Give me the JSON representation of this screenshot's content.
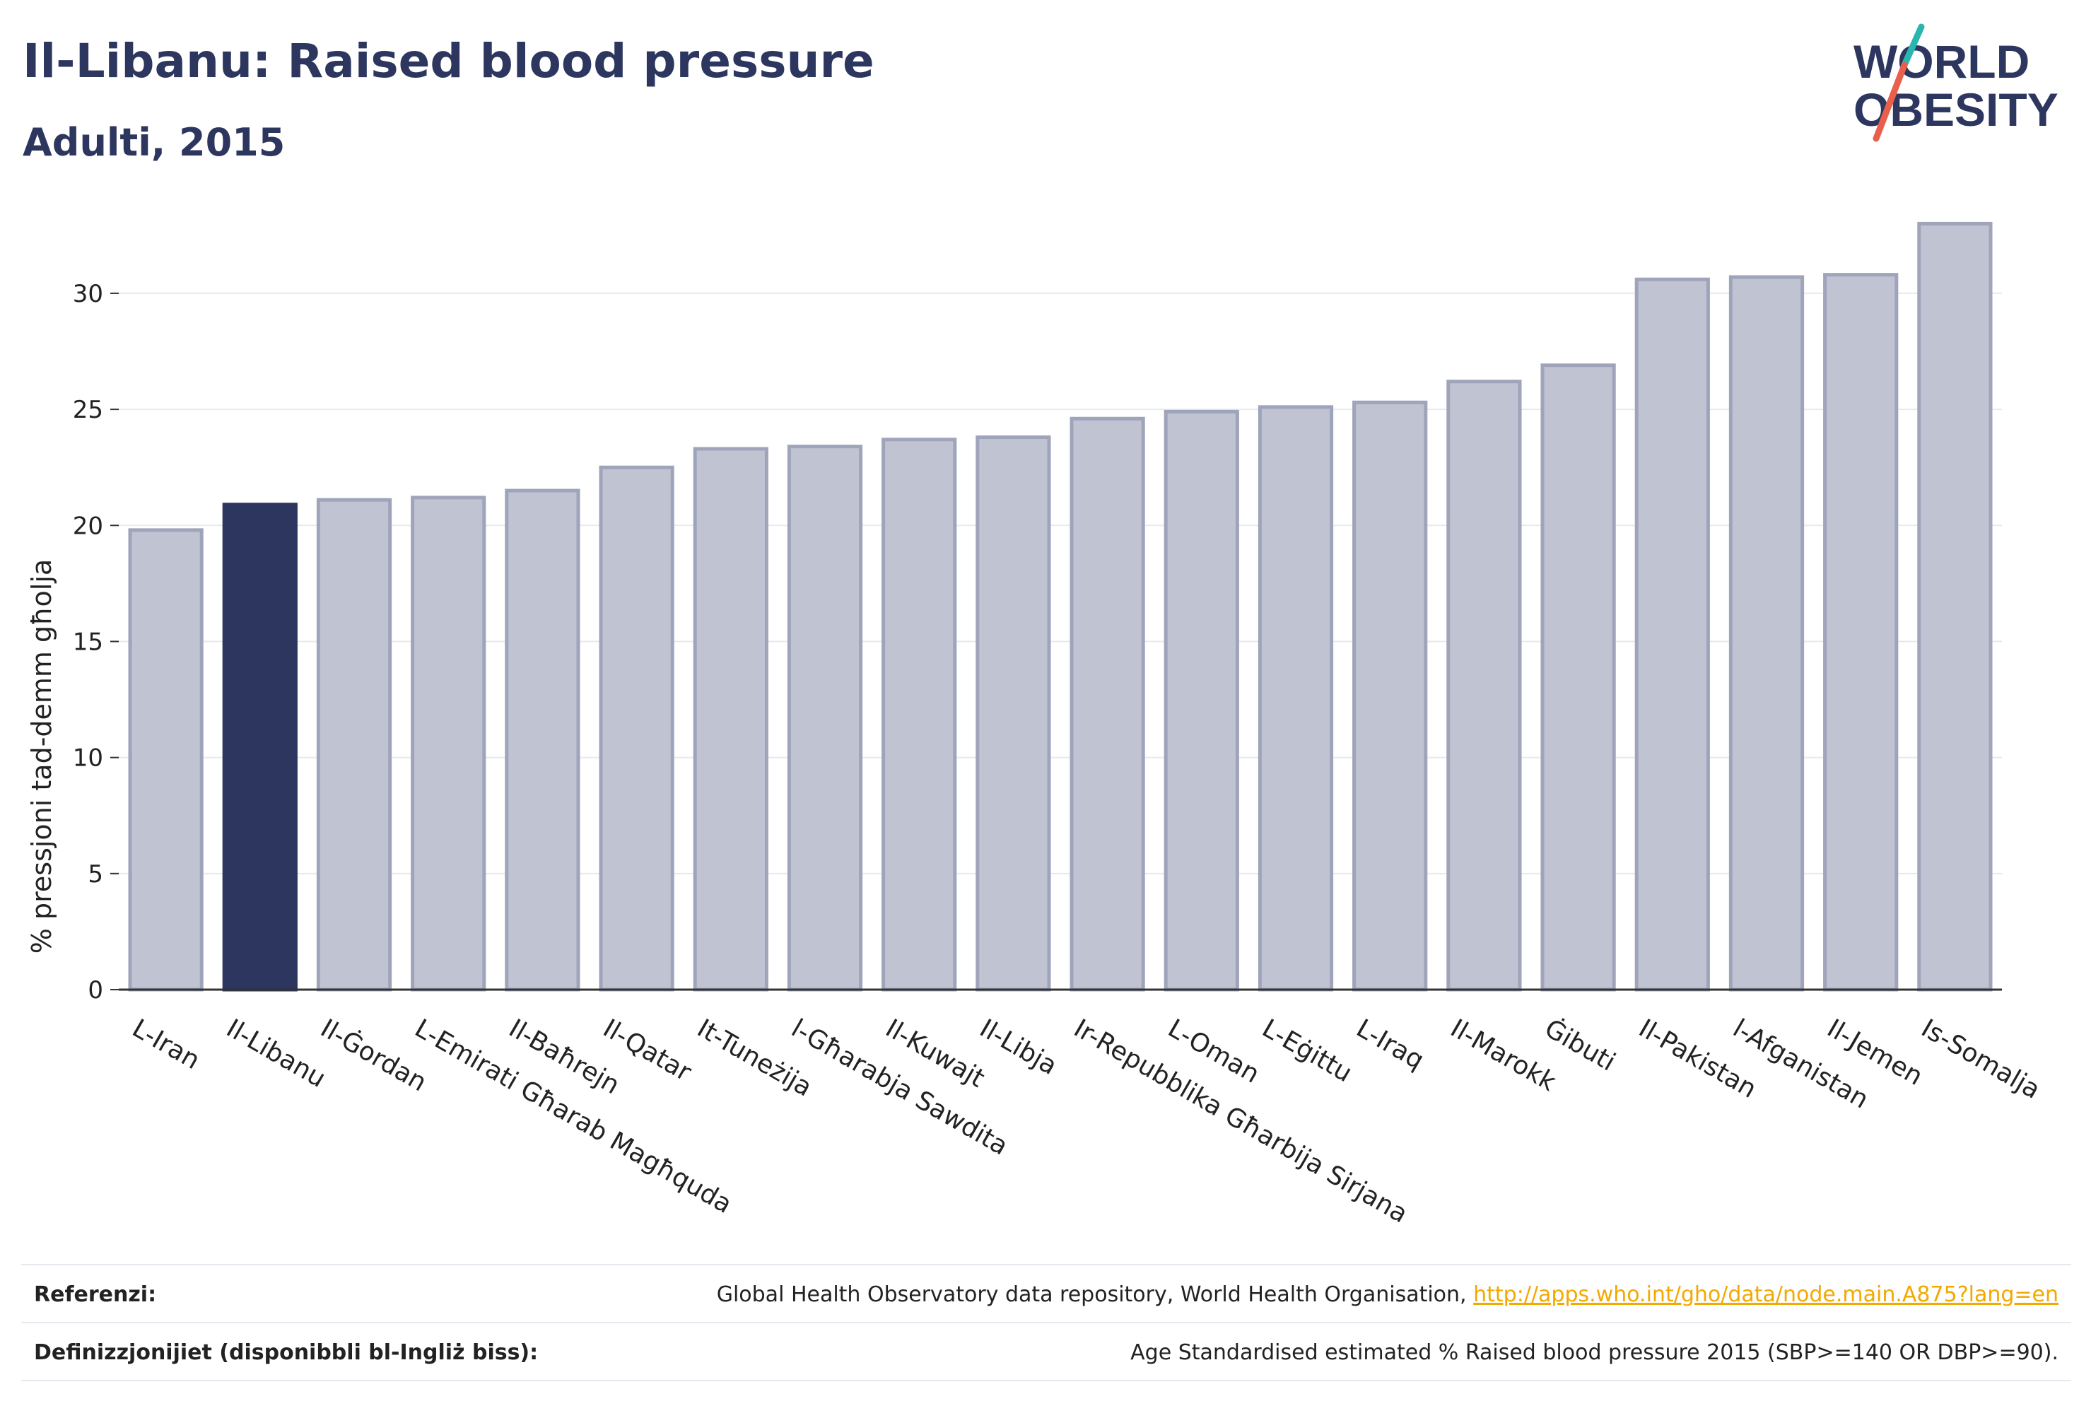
{
  "header": {
    "title": "Il-Libanu: Raised blood pressure",
    "subtitle": "Adulti, 2015"
  },
  "logo": {
    "line1": "WORLD",
    "line2": "OBESITY",
    "accent_top": "#2bb5b0",
    "accent_bottom": "#e8604c"
  },
  "chart_data": {
    "type": "bar",
    "title": "Il-Libanu: Raised blood pressure",
    "subtitle": "Adulti, 2015",
    "ylabel": "% pressjoni tad-demm għolja",
    "xlabel": "",
    "ylim": [
      0,
      33.5
    ],
    "yticks": [
      0,
      5,
      10,
      15,
      20,
      25,
      30
    ],
    "grid": true,
    "highlight": "Il-Libanu",
    "colors": {
      "bar": "#c0c3d1",
      "bar_border": "#9fa4bb",
      "highlight": "#2c365e",
      "grid": "#e8e9ee",
      "axis": "#333333"
    },
    "categories": [
      "L-Iran",
      "Il-Libanu",
      "Il-Ġordan",
      "L-Emirati Għarab Magħquda",
      "Il-Baħrejn",
      "Il-Qatar",
      "It-Tuneżija",
      "l-Għarabja Sawdita",
      "Il-Kuwajt",
      "Il-Libja",
      "Ir-Repubblika Għarbija Sirjana",
      "L-Oman",
      "L-Eġittu",
      "L-Iraq",
      "Il-Marokk",
      "Ġibuti",
      "Il-Pakistan",
      "l-Afganistan",
      "Il-Jemen",
      "Is-Somalja"
    ],
    "values": [
      19.8,
      20.9,
      21.1,
      21.2,
      21.5,
      22.5,
      23.3,
      23.4,
      23.7,
      23.8,
      24.6,
      24.9,
      25.1,
      25.3,
      26.2,
      26.9,
      30.6,
      30.7,
      30.8,
      33.0
    ]
  },
  "footer": {
    "ref_label": "Referenzi:",
    "ref_text": "Global Health Observatory data repository, World Health Organisation,",
    "ref_link": "http://apps.who.int/gho/data/node.main.A875?lang=en",
    "def_label": "Definizzjonijiet (disponibbli bl-Ingliż biss):",
    "def_text": "Age Standardised estimated % Raised blood pressure 2015 (SBP>=140 OR DBP>=90)."
  }
}
